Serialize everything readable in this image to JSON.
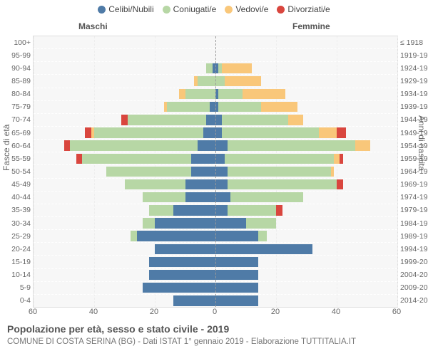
{
  "title": "Popolazione per età, sesso e stato civile - 2019",
  "subtitle": "COMUNE DI COSTA SERINA (BG) - Dati ISTAT 1° gennaio 2019 - Elaborazione TUTTITALIA.IT",
  "side_labels": {
    "male": "Maschi",
    "female": "Femmine"
  },
  "y_axis_left": "Fasce di età",
  "y_axis_right": "Anni di nascita",
  "legend": [
    {
      "label": "Celibi/Nubili",
      "color": "#4f7ba7"
    },
    {
      "label": "Coniugati/e",
      "color": "#b7d7a5"
    },
    {
      "label": "Vedovi/e",
      "color": "#f9c77a"
    },
    {
      "label": "Divorziati/e",
      "color": "#d9463e"
    }
  ],
  "colors": {
    "celibi": "#4f7ba7",
    "coniugati": "#b7d7a5",
    "vedovi": "#f9c77a",
    "divorziati": "#d9463e",
    "plot_bg": "#f7f7f7",
    "grid": "#eeeeee",
    "centerline": "#999999"
  },
  "x_axis": {
    "max": 60,
    "ticks": [
      60,
      40,
      20,
      0,
      20,
      40,
      60
    ]
  },
  "rows": [
    {
      "age": "100+",
      "birth": "≤ 1918",
      "m": {
        "c": 0,
        "m": 0,
        "w": 0,
        "d": 0
      },
      "f": {
        "c": 0,
        "m": 0,
        "w": 0,
        "d": 0
      }
    },
    {
      "age": "95-99",
      "birth": "1919-1923",
      "m": {
        "c": 0,
        "m": 0,
        "w": 0,
        "d": 0
      },
      "f": {
        "c": 0,
        "m": 0,
        "w": 0,
        "d": 0
      }
    },
    {
      "age": "90-94",
      "birth": "1924-1928",
      "m": {
        "c": 1,
        "m": 2,
        "w": 0,
        "d": 0
      },
      "f": {
        "c": 1,
        "m": 1,
        "w": 10,
        "d": 0
      }
    },
    {
      "age": "85-89",
      "birth": "1929-1933",
      "m": {
        "c": 0,
        "m": 6,
        "w": 1,
        "d": 0
      },
      "f": {
        "c": 0,
        "m": 3,
        "w": 12,
        "d": 0
      }
    },
    {
      "age": "80-84",
      "birth": "1934-1938",
      "m": {
        "c": 0,
        "m": 10,
        "w": 2,
        "d": 0
      },
      "f": {
        "c": 1,
        "m": 8,
        "w": 14,
        "d": 0
      }
    },
    {
      "age": "75-79",
      "birth": "1939-1943",
      "m": {
        "c": 2,
        "m": 14,
        "w": 1,
        "d": 0
      },
      "f": {
        "c": 1,
        "m": 14,
        "w": 12,
        "d": 0
      }
    },
    {
      "age": "70-74",
      "birth": "1944-1948",
      "m": {
        "c": 3,
        "m": 26,
        "w": 0,
        "d": 2
      },
      "f": {
        "c": 2,
        "m": 22,
        "w": 5,
        "d": 0
      }
    },
    {
      "age": "65-69",
      "birth": "1949-1953",
      "m": {
        "c": 4,
        "m": 36,
        "w": 1,
        "d": 2
      },
      "f": {
        "c": 2,
        "m": 32,
        "w": 6,
        "d": 3
      }
    },
    {
      "age": "60-64",
      "birth": "1954-1958",
      "m": {
        "c": 6,
        "m": 42,
        "w": 0,
        "d": 2
      },
      "f": {
        "c": 4,
        "m": 42,
        "w": 5,
        "d": 0
      }
    },
    {
      "age": "55-59",
      "birth": "1959-1963",
      "m": {
        "c": 8,
        "m": 36,
        "w": 0,
        "d": 2
      },
      "f": {
        "c": 3,
        "m": 36,
        "w": 2,
        "d": 1
      }
    },
    {
      "age": "50-54",
      "birth": "1964-1968",
      "m": {
        "c": 8,
        "m": 28,
        "w": 0,
        "d": 0
      },
      "f": {
        "c": 4,
        "m": 34,
        "w": 1,
        "d": 0
      }
    },
    {
      "age": "45-49",
      "birth": "1969-1973",
      "m": {
        "c": 10,
        "m": 20,
        "w": 0,
        "d": 0
      },
      "f": {
        "c": 4,
        "m": 36,
        "w": 0,
        "d": 2
      }
    },
    {
      "age": "40-44",
      "birth": "1974-1978",
      "m": {
        "c": 10,
        "m": 14,
        "w": 0,
        "d": 0
      },
      "f": {
        "c": 5,
        "m": 24,
        "w": 0,
        "d": 0
      }
    },
    {
      "age": "35-39",
      "birth": "1979-1983",
      "m": {
        "c": 14,
        "m": 8,
        "w": 0,
        "d": 0
      },
      "f": {
        "c": 4,
        "m": 16,
        "w": 0,
        "d": 2
      }
    },
    {
      "age": "30-34",
      "birth": "1984-1988",
      "m": {
        "c": 20,
        "m": 4,
        "w": 0,
        "d": 0
      },
      "f": {
        "c": 10,
        "m": 10,
        "w": 0,
        "d": 0
      }
    },
    {
      "age": "25-29",
      "birth": "1989-1993",
      "m": {
        "c": 26,
        "m": 2,
        "w": 0,
        "d": 0
      },
      "f": {
        "c": 14,
        "m": 3,
        "w": 0,
        "d": 0
      }
    },
    {
      "age": "20-24",
      "birth": "1994-1998",
      "m": {
        "c": 20,
        "m": 0,
        "w": 0,
        "d": 0
      },
      "f": {
        "c": 32,
        "m": 0,
        "w": 0,
        "d": 0
      }
    },
    {
      "age": "15-19",
      "birth": "1999-2003",
      "m": {
        "c": 22,
        "m": 0,
        "w": 0,
        "d": 0
      },
      "f": {
        "c": 14,
        "m": 0,
        "w": 0,
        "d": 0
      }
    },
    {
      "age": "10-14",
      "birth": "2004-2008",
      "m": {
        "c": 22,
        "m": 0,
        "w": 0,
        "d": 0
      },
      "f": {
        "c": 14,
        "m": 0,
        "w": 0,
        "d": 0
      }
    },
    {
      "age": "5-9",
      "birth": "2009-2013",
      "m": {
        "c": 24,
        "m": 0,
        "w": 0,
        "d": 0
      },
      "f": {
        "c": 14,
        "m": 0,
        "w": 0,
        "d": 0
      }
    },
    {
      "age": "0-4",
      "birth": "2014-2018",
      "m": {
        "c": 14,
        "m": 0,
        "w": 0,
        "d": 0
      },
      "f": {
        "c": 14,
        "m": 0,
        "w": 0,
        "d": 0
      }
    }
  ]
}
